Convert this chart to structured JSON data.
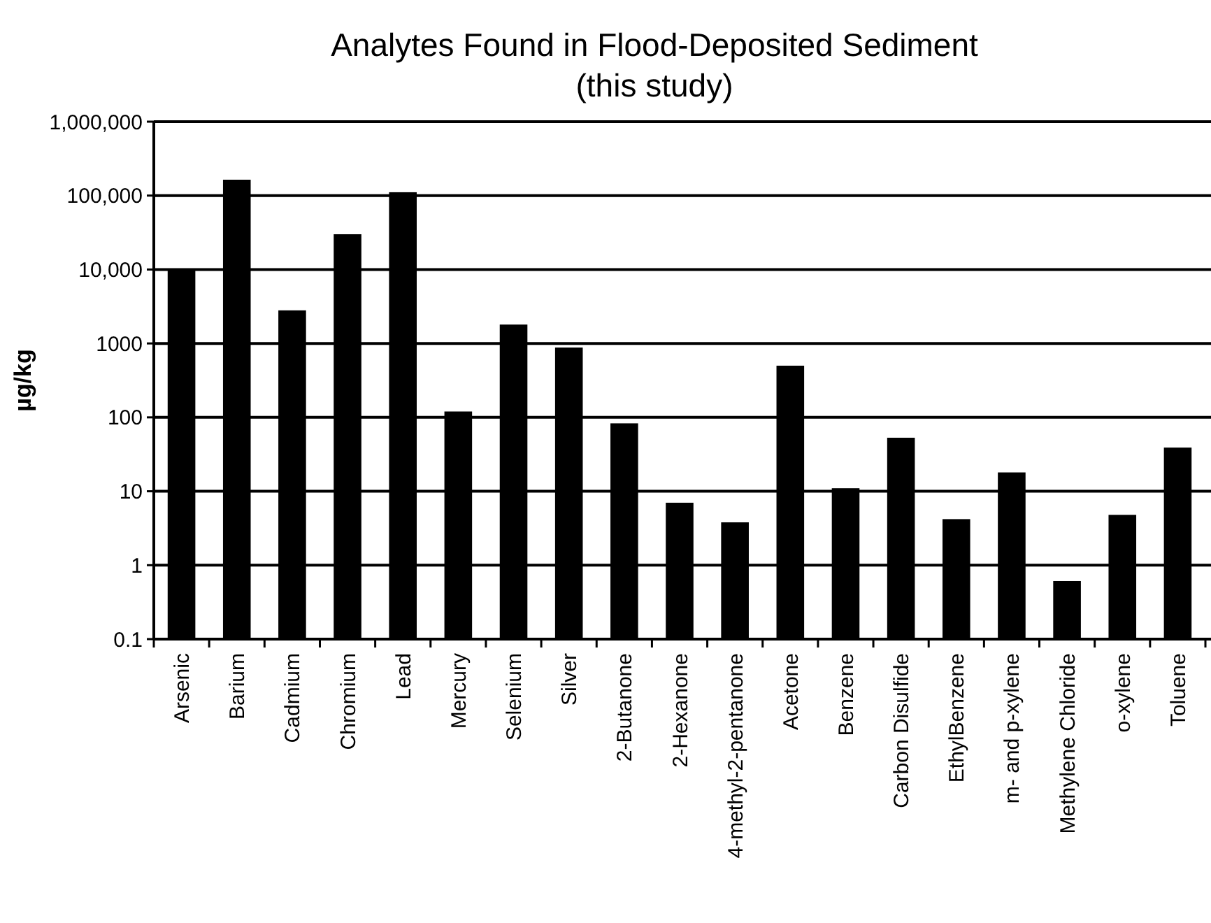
{
  "chart_data": {
    "type": "bar",
    "title": "Analytes Found in Flood-Deposited Sediment\n(this study)",
    "ylabel": "µg/kg",
    "categories": [
      "Arsenic",
      "Barium",
      "Cadmium",
      "Chromium",
      "Lead",
      "Mercury",
      "Selenium",
      "Silver",
      "2-Butanone",
      "2-Hexanone",
      "4-methyl-2-pentanone",
      "Acetone",
      "Benzene",
      "Carbon Disulfide",
      "EthylBenzene",
      "m- and p-xylene",
      "Methylene Chloride",
      "o-xylene",
      "Toluene"
    ],
    "values": [
      10000,
      164000,
      2800,
      30000,
      111000,
      120,
      1800,
      880,
      83,
      7,
      3.8,
      500,
      11,
      53,
      4.2,
      18,
      0.61,
      4.8,
      39
    ],
    "color": "#000000",
    "log": true,
    "ylim": [
      0.1,
      1000000
    ],
    "yticks": [
      {
        "value": 0.1,
        "label": "0.1"
      },
      1,
      10,
      100,
      1000,
      {
        "value": 10000,
        "label": "10,000"
      },
      {
        "value": 100000,
        "label": "100,000"
      },
      {
        "value": 1000000,
        "label": "1,000,000"
      }
    ],
    "grid": "y"
  }
}
